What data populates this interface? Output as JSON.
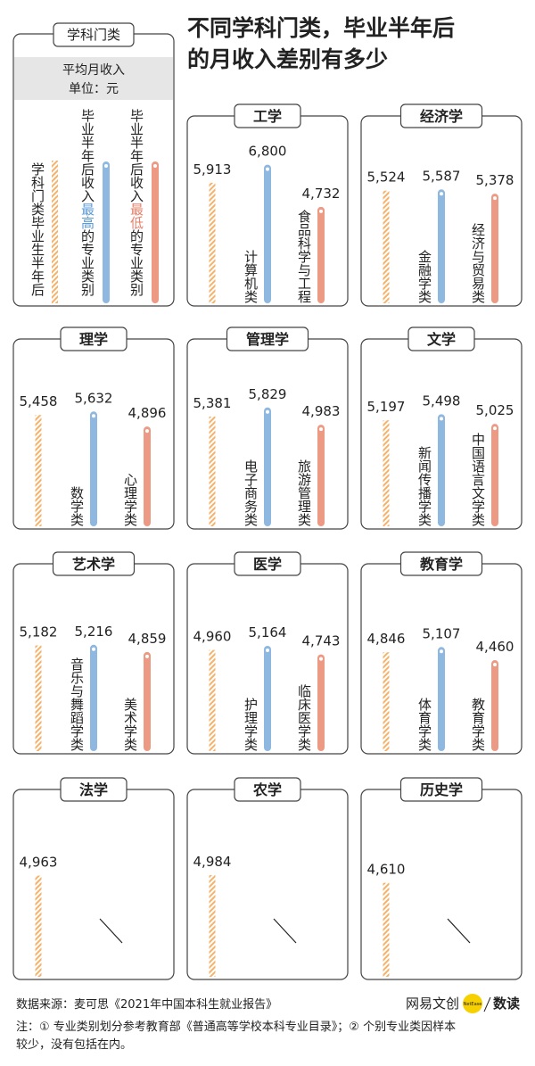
{
  "title_lines": [
    "不同学科门类，毕业半年后",
    "的月收入差别有多少"
  ],
  "legend": {
    "title": "学科门类",
    "band": [
      "平均月收入",
      "单位：元"
    ],
    "items": [
      [
        "学科门类毕业生半年后"
      ],
      [
        "毕业半年后收入",
        "最高",
        "的专业类别"
      ],
      [
        "毕业半年后收入",
        "最低",
        "的专业类别"
      ]
    ]
  },
  "chart_data": [
    {
      "type": "bar",
      "title": "工学",
      "categories": [
        null,
        "计算机类",
        "食品科学与工程"
      ],
      "values": [
        5913,
        6800,
        4732
      ],
      "value_labels": [
        "5,913",
        "6,800",
        "4,732"
      ],
      "ylim": [
        0,
        7000
      ]
    },
    {
      "type": "bar",
      "title": "经济学",
      "categories": [
        null,
        "金融学类",
        "经济与贸易类"
      ],
      "values": [
        5524,
        5587,
        5378
      ],
      "value_labels": [
        "5,524",
        "5,587",
        "5,378"
      ],
      "ylim": [
        0,
        7000
      ]
    },
    {
      "type": "bar",
      "title": "理学",
      "categories": [
        null,
        "数学类",
        "心理学类"
      ],
      "values": [
        5458,
        5632,
        4896
      ],
      "value_labels": [
        "5,458",
        "5,632",
        "4,896"
      ],
      "ylim": [
        0,
        7000
      ]
    },
    {
      "type": "bar",
      "title": "管理学",
      "categories": [
        null,
        "电子商务类",
        "旅游管理类"
      ],
      "values": [
        5381,
        5829,
        4983
      ],
      "value_labels": [
        "5,381",
        "5,829",
        "4,983"
      ],
      "ylim": [
        0,
        7000
      ]
    },
    {
      "type": "bar",
      "title": "文学",
      "categories": [
        null,
        "新闻传播学类",
        "中国语言文学类"
      ],
      "values": [
        5197,
        5498,
        5025
      ],
      "value_labels": [
        "5,197",
        "5,498",
        "5,025"
      ],
      "ylim": [
        0,
        7000
      ]
    },
    {
      "type": "bar",
      "title": "艺术学",
      "categories": [
        null,
        "音乐与舞蹈学类",
        "美术学类"
      ],
      "values": [
        5182,
        5216,
        4859
      ],
      "value_labels": [
        "5,182",
        "5,216",
        "4,859"
      ],
      "ylim": [
        0,
        7000
      ]
    },
    {
      "type": "bar",
      "title": "医学",
      "categories": [
        null,
        "护理学类",
        "临床医学类"
      ],
      "values": [
        4960,
        5164,
        4743
      ],
      "value_labels": [
        "4,960",
        "5,164",
        "4,743"
      ],
      "ylim": [
        0,
        7000
      ]
    },
    {
      "type": "bar",
      "title": "教育学",
      "categories": [
        null,
        "体育学类",
        "教育学类"
      ],
      "values": [
        4846,
        5107,
        4460
      ],
      "value_labels": [
        "4,846",
        "5,107",
        "4,460"
      ],
      "ylim": [
        0,
        7000
      ]
    },
    {
      "type": "bar",
      "title": "法学",
      "categories": [
        null
      ],
      "values": [
        4963
      ],
      "value_labels": [
        "4,963"
      ],
      "ylim": [
        0,
        7000
      ]
    },
    {
      "type": "bar",
      "title": "农学",
      "categories": [
        null
      ],
      "values": [
        4984
      ],
      "value_labels": [
        "4,984"
      ],
      "ylim": [
        0,
        7000
      ]
    },
    {
      "type": "bar",
      "title": "历史学",
      "categories": [
        null
      ],
      "values": [
        4610
      ],
      "value_labels": [
        "4,610"
      ],
      "ylim": [
        0,
        7000
      ]
    }
  ],
  "colors": {
    "average": "#f5b26b",
    "highest": "#8fb8e0",
    "lowest": "#ec9a84",
    "highest_text": "#5b9bd5",
    "lowest_text": "#e3806a"
  },
  "footer": {
    "source": "数据来源：麦可思《2021年中国本科生就业报告》",
    "note": [
      "注：① 专业类别划分参考教育部《普通高等学校本科专业目录》；② 个别专业类因样本",
      "较少，没有包括在内。"
    ],
    "logo": "网易文创",
    "logo_badge": "NetEase",
    "logo_tail": "数读"
  }
}
